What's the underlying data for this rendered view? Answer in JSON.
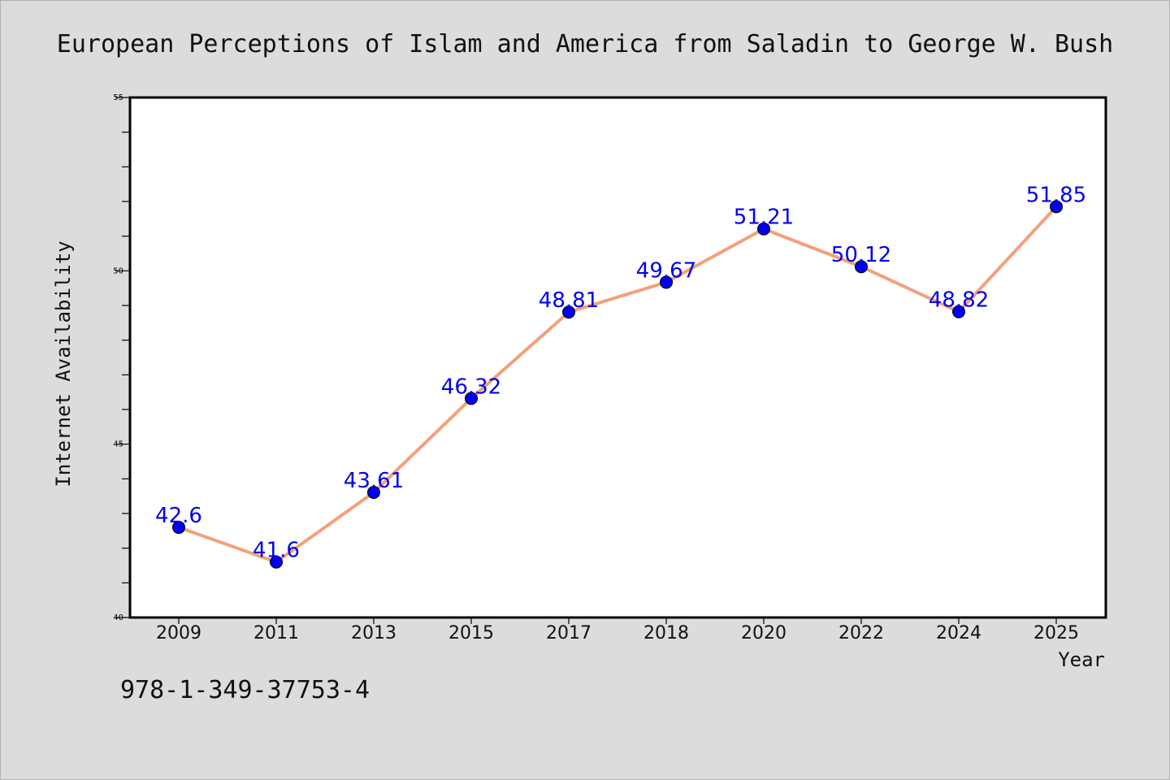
{
  "caption": "978-1-349-37753-4",
  "chart_data": {
    "type": "line",
    "title": "European Perceptions of Islam and America from Saladin to George W. Bush",
    "xlabel": "Year",
    "ylabel": "Internet Availability",
    "categories": [
      "2009",
      "2011",
      "2013",
      "2015",
      "2017",
      "2018",
      "2020",
      "2022",
      "2024",
      "2025"
    ],
    "values": [
      42.6,
      41.6,
      43.61,
      46.32,
      48.81,
      49.67,
      51.21,
      50.12,
      48.82,
      51.85
    ],
    "data_labels": [
      "42.6",
      "41.6",
      "43.61",
      "46.32",
      "48.81",
      "49.67",
      "51.21",
      "50.12",
      "48.82",
      "51.85"
    ],
    "ylim": [
      40,
      55
    ],
    "y_ticks": [
      "40",
      "45",
      "50",
      "55"
    ],
    "grid": false,
    "legend": "none",
    "colors": {
      "line": "#f4a07a",
      "marker": "#0000ee",
      "data_label": "#0000ee",
      "axes": "#000000",
      "background": "#dcdcdc",
      "plot_background": "#ffffff"
    }
  }
}
